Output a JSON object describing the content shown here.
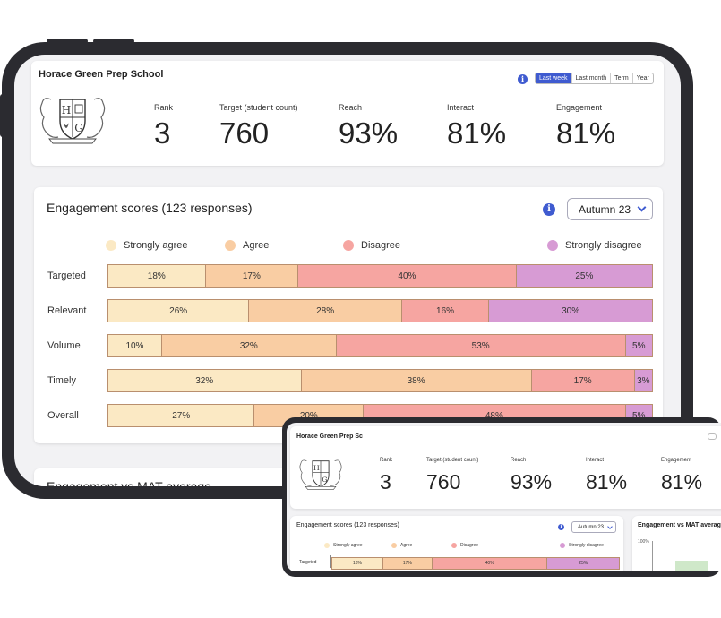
{
  "school": {
    "name": "Horace Green Prep School",
    "initials_left": "H",
    "initials_right": "G"
  },
  "laptop_school_name": "Horace Green Prep Sc",
  "kpis": [
    {
      "label": "Rank",
      "value": "3"
    },
    {
      "label": "Target (student count)",
      "value": "760"
    },
    {
      "label": "Reach",
      "value": "93%"
    },
    {
      "label": "Interact",
      "value": "81%"
    },
    {
      "label": "Engagement",
      "value": "81%"
    }
  ],
  "period_filter": {
    "options": [
      "Last week",
      "Last month",
      "Term",
      "Year"
    ],
    "selected": "Last week"
  },
  "info_glyph": "i",
  "engagement": {
    "title": "Engagement scores (123 responses)",
    "term_selected": "Autumn 23"
  },
  "mat_chart": {
    "title": "Engagement vs MAT average",
    "y_tick": "100%"
  },
  "colors": {
    "accent": "#3f5bd0",
    "strongly_agree": "#fbe9c4",
    "agree": "#f9cda3",
    "disagree": "#f6a5a1",
    "strongly_disagree": "#d79bd4",
    "mat_bar": "#cfe8c9"
  },
  "chart_data": {
    "type": "bar",
    "orientation": "horizontal",
    "stacked": true,
    "normalized_percent": true,
    "categories": [
      "Targeted",
      "Relevant",
      "Volume",
      "Timely",
      "Overall"
    ],
    "series": [
      {
        "name": "Strongly agree",
        "values": [
          18,
          26,
          10,
          32,
          27
        ]
      },
      {
        "name": "Agree",
        "values": [
          17,
          28,
          32,
          38,
          20
        ]
      },
      {
        "name": "Disagree",
        "values": [
          40,
          16,
          53,
          17,
          48
        ]
      },
      {
        "name": "Strongly disagree",
        "values": [
          25,
          30,
          5,
          3,
          5
        ]
      }
    ],
    "legend_position": "top"
  }
}
